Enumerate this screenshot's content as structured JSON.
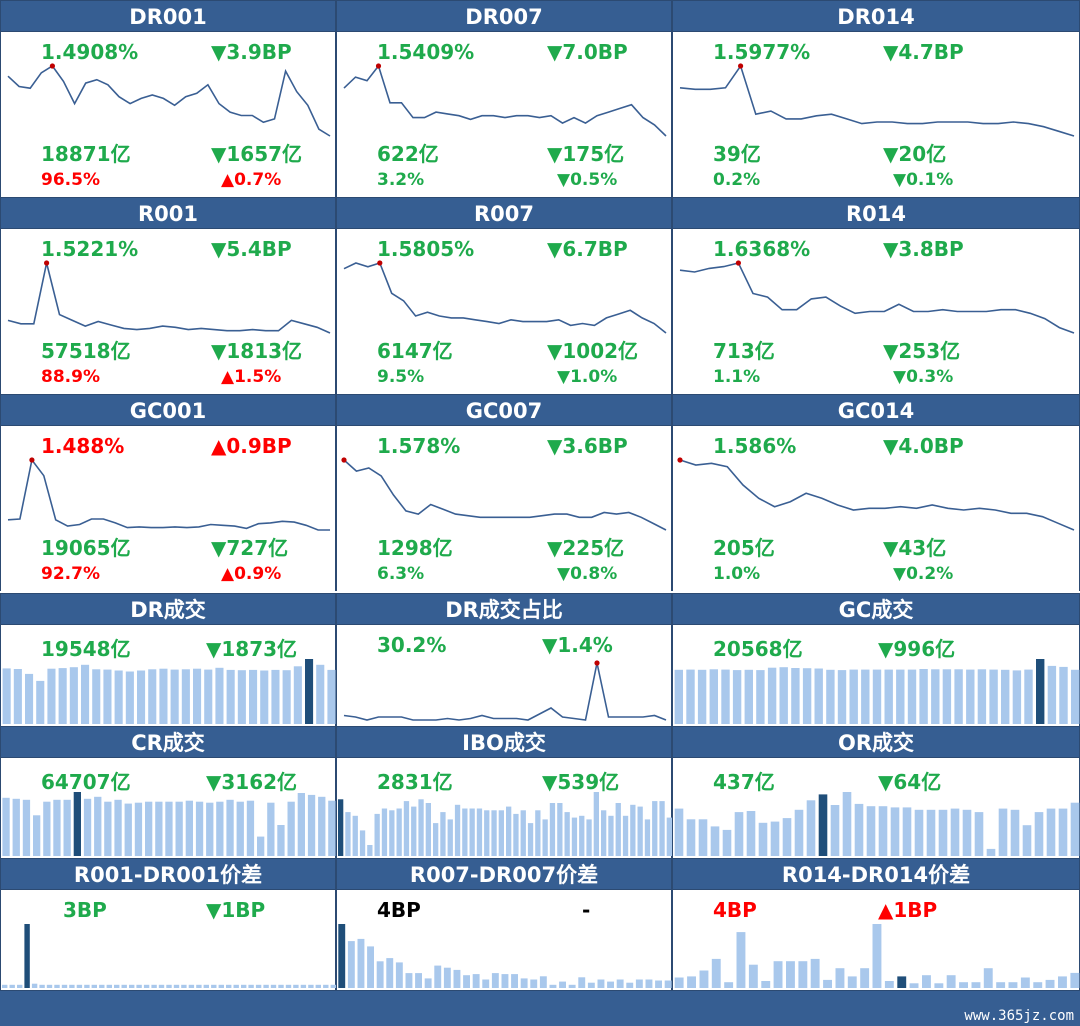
{
  "colors": {
    "green": "#1faa4c",
    "red": "#ff0000",
    "header": "#365e92",
    "bar": "#a9c8ec",
    "bar_hi": "#1f4e79",
    "line": "#3a5f93",
    "marker": "#c00000"
  },
  "rate_panels": [
    {
      "title": "DR001",
      "rate": "1.4908%",
      "rate_c": "g",
      "rate_chg": "▼3.9BP",
      "rate_chg_c": "g",
      "vol": "18871亿",
      "vol_c": "g",
      "vol_chg": "▼1657亿",
      "vol_chg_c": "g",
      "share": "96.5%",
      "share_c": "r",
      "share_chg": "▲0.7%",
      "share_chg_c": "r",
      "chart_data": {
        "type": "line",
        "title": "DR001",
        "marker_index": 4,
        "values": [
          1.49,
          1.43,
          1.42,
          1.51,
          1.55,
          1.46,
          1.33,
          1.45,
          1.47,
          1.44,
          1.37,
          1.33,
          1.36,
          1.38,
          1.36,
          1.32,
          1.37,
          1.39,
          1.44,
          1.33,
          1.28,
          1.26,
          1.26,
          1.22,
          1.24,
          1.52,
          1.4,
          1.32,
          1.18,
          1.14
        ]
      }
    },
    {
      "title": "DR007",
      "rate": "1.5409%",
      "rate_c": "g",
      "rate_chg": "▼7.0BP",
      "rate_chg_c": "g",
      "vol": "622亿",
      "vol_c": "g",
      "vol_chg": "▼175亿",
      "vol_chg_c": "g",
      "share": "3.2%",
      "share_c": "g",
      "share_chg": "▼0.5%",
      "share_chg_c": "g",
      "chart_data": {
        "type": "line",
        "title": "DR007",
        "marker_index": 3,
        "values": [
          1.76,
          1.82,
          1.8,
          1.88,
          1.68,
          1.68,
          1.6,
          1.6,
          1.63,
          1.62,
          1.61,
          1.59,
          1.61,
          1.61,
          1.6,
          1.61,
          1.61,
          1.6,
          1.61,
          1.57,
          1.6,
          1.57,
          1.61,
          1.63,
          1.65,
          1.67,
          1.6,
          1.56,
          1.5
        ]
      }
    },
    {
      "title": "DR014",
      "rate": "1.5977%",
      "rate_c": "g",
      "rate_chg": "▼4.7BP",
      "rate_chg_c": "g",
      "vol": "39亿",
      "vol_c": "g",
      "vol_chg": "▼20亿",
      "vol_chg_c": "g",
      "share": "0.2%",
      "share_c": "g",
      "share_chg": "▼0.1%",
      "share_chg_c": "g",
      "chart_data": {
        "type": "line",
        "title": "DR014",
        "marker_index": 4,
        "values": [
          1.9,
          1.89,
          1.89,
          1.9,
          2.04,
          1.73,
          1.75,
          1.7,
          1.7,
          1.72,
          1.73,
          1.7,
          1.67,
          1.68,
          1.68,
          1.67,
          1.67,
          1.68,
          1.68,
          1.68,
          1.67,
          1.67,
          1.68,
          1.67,
          1.65,
          1.62,
          1.59
        ]
      }
    },
    {
      "title": "R001",
      "rate": "1.5221%",
      "rate_c": "g",
      "rate_chg": "▼5.4BP",
      "rate_chg_c": "g",
      "vol": "57518亿",
      "vol_c": "g",
      "vol_chg": "▼1813亿",
      "vol_chg_c": "g",
      "share": "88.9%",
      "share_c": "r",
      "share_chg": "▲1.5%",
      "share_chg_c": "r",
      "chart_data": {
        "type": "line",
        "title": "R001",
        "marker_index": 3,
        "values": [
          1.6,
          1.57,
          1.57,
          2.1,
          1.65,
          1.6,
          1.55,
          1.59,
          1.56,
          1.53,
          1.52,
          1.53,
          1.55,
          1.54,
          1.52,
          1.53,
          1.52,
          1.51,
          1.51,
          1.52,
          1.51,
          1.51,
          1.6,
          1.57,
          1.54,
          1.49
        ]
      }
    },
    {
      "title": "R007",
      "rate": "1.5805%",
      "rate_c": "g",
      "rate_chg": "▼6.7BP",
      "rate_chg_c": "g",
      "vol": "6147亿",
      "vol_c": "g",
      "vol_chg": "▼1002亿",
      "vol_chg_c": "g",
      "share": "9.5%",
      "share_c": "g",
      "share_chg": "▼1.0%",
      "share_chg_c": "g",
      "chart_data": {
        "type": "line",
        "title": "R007",
        "marker_index": 3,
        "values": [
          1.9,
          1.93,
          1.91,
          1.93,
          1.77,
          1.73,
          1.65,
          1.67,
          1.65,
          1.64,
          1.64,
          1.63,
          1.62,
          1.61,
          1.63,
          1.62,
          1.62,
          1.62,
          1.63,
          1.6,
          1.61,
          1.6,
          1.64,
          1.66,
          1.68,
          1.64,
          1.61,
          1.56
        ]
      }
    },
    {
      "title": "R014",
      "rate": "1.6368%",
      "rate_c": "g",
      "rate_chg": "▼3.8BP",
      "rate_chg_c": "g",
      "vol": "713亿",
      "vol_c": "g",
      "vol_chg": "▼253亿",
      "vol_chg_c": "g",
      "share": "1.1%",
      "share_c": "g",
      "share_chg": "▼0.3%",
      "share_chg_c": "g",
      "chart_data": {
        "type": "line",
        "title": "R014",
        "marker_index": 4,
        "values": [
          1.92,
          1.91,
          1.93,
          1.94,
          1.96,
          1.79,
          1.77,
          1.7,
          1.7,
          1.76,
          1.77,
          1.72,
          1.68,
          1.69,
          1.69,
          1.73,
          1.69,
          1.69,
          1.7,
          1.69,
          1.69,
          1.69,
          1.7,
          1.7,
          1.68,
          1.65,
          1.6,
          1.57
        ]
      }
    },
    {
      "title": "GC001",
      "rate": "1.488%",
      "rate_c": "r",
      "rate_chg": "▲0.9BP",
      "rate_chg_c": "r",
      "vol": "19065亿",
      "vol_c": "g",
      "vol_chg": "▼727亿",
      "vol_chg_c": "g",
      "share": "92.7%",
      "share_c": "r",
      "share_chg": "▲0.9%",
      "share_chg_c": "r",
      "chart_data": {
        "type": "line",
        "title": "GC001",
        "marker_index": 2,
        "values": [
          1.52,
          1.53,
          2.28,
          2.08,
          1.52,
          1.44,
          1.46,
          1.53,
          1.53,
          1.48,
          1.42,
          1.43,
          1.42,
          1.42,
          1.43,
          1.42,
          1.43,
          1.46,
          1.45,
          1.44,
          1.41,
          1.47,
          1.48,
          1.5,
          1.49,
          1.45,
          1.39,
          1.39
        ]
      }
    },
    {
      "title": "GC007",
      "rate": "1.578%",
      "rate_c": "g",
      "rate_chg": "▼3.6BP",
      "rate_chg_c": "g",
      "vol": "1298亿",
      "vol_c": "g",
      "vol_chg": "▼225亿",
      "vol_chg_c": "g",
      "share": "6.3%",
      "share_c": "g",
      "share_chg": "▼0.8%",
      "share_chg_c": "g",
      "chart_data": {
        "type": "line",
        "title": "GC007",
        "marker_index": 0,
        "values": [
          2.0,
          1.93,
          1.95,
          1.9,
          1.78,
          1.68,
          1.66,
          1.72,
          1.69,
          1.66,
          1.65,
          1.64,
          1.64,
          1.64,
          1.64,
          1.64,
          1.65,
          1.66,
          1.66,
          1.64,
          1.64,
          1.67,
          1.66,
          1.67,
          1.64,
          1.6,
          1.56
        ]
      }
    },
    {
      "title": "GC014",
      "rate": "1.586%",
      "rate_c": "g",
      "rate_chg": "▼4.0BP",
      "rate_chg_c": "g",
      "vol": "205亿",
      "vol_c": "g",
      "vol_chg": "▼43亿",
      "vol_chg_c": "g",
      "share": "1.0%",
      "share_c": "g",
      "share_chg": "▼0.2%",
      "share_chg_c": "g",
      "chart_data": {
        "type": "line",
        "title": "GC014",
        "marker_index": 0,
        "values": [
          2.0,
          1.97,
          1.98,
          1.96,
          1.85,
          1.77,
          1.72,
          1.75,
          1.8,
          1.77,
          1.73,
          1.7,
          1.71,
          1.71,
          1.72,
          1.71,
          1.73,
          1.71,
          1.7,
          1.71,
          1.7,
          1.68,
          1.68,
          1.66,
          1.62,
          1.58
        ]
      }
    }
  ],
  "small_panels": [
    {
      "title": "DR成交",
      "v1": "19548亿",
      "v1_c": "g",
      "v2": "▼1873亿",
      "v2_c": "g",
      "chart_data": {
        "type": "bar",
        "title": "DR成交",
        "highlight_index": 27,
        "values": [
          18.3,
          18.1,
          16.5,
          14.2,
          18.2,
          18.4,
          18.7,
          19.5,
          18.0,
          17.9,
          17.6,
          17.3,
          17.6,
          18.0,
          18.2,
          17.9,
          18.0,
          18.2,
          17.9,
          18.5,
          17.8,
          17.7,
          17.8,
          17.6,
          17.8,
          17.7,
          19.0,
          21.4,
          19.5,
          17.8
        ]
      }
    },
    {
      "title": "DR成交占比",
      "v1": "30.2%",
      "v1_c": "g",
      "v2": "▼1.4%",
      "v2_c": "g",
      "chart_data": {
        "type": "line",
        "title": "DR成交占比",
        "marker_index": 22,
        "values": [
          32,
          31,
          29,
          31,
          31,
          31,
          29,
          29,
          29,
          30,
          29,
          30,
          32,
          30,
          30,
          30,
          29,
          33,
          37,
          31,
          30,
          29,
          67,
          31,
          31,
          31,
          31,
          32,
          29
        ]
      }
    },
    {
      "title": "GC成交",
      "v1": "20568亿",
      "v1_c": "g",
      "v2": "▼996亿",
      "v2_c": "g",
      "chart_data": {
        "type": "bar",
        "title": "GC成交",
        "highlight_index": 31,
        "values": [
          20.5,
          20.6,
          20.5,
          20.7,
          20.6,
          20.4,
          20.5,
          20.4,
          21.3,
          21.5,
          21.2,
          21.1,
          21.0,
          20.5,
          20.4,
          20.6,
          20.6,
          20.6,
          20.6,
          20.6,
          20.6,
          20.8,
          20.7,
          20.7,
          20.7,
          20.6,
          20.7,
          20.6,
          20.5,
          20.3,
          20.6,
          24.6,
          22.0,
          21.6,
          20.5
        ]
      }
    },
    {
      "title": "CR成交",
      "v1": "64707亿",
      "v1_c": "g",
      "v2": "▼3162亿",
      "v2_c": "g",
      "chart_data": {
        "type": "bar",
        "title": "CR成交",
        "highlight_index": 7,
        "values": [
          60,
          59,
          58,
          42,
          56,
          58,
          58,
          66,
          59,
          61,
          56,
          58,
          54,
          55,
          56,
          56,
          56,
          56,
          57,
          56,
          55,
          56,
          58,
          56,
          57,
          20,
          55,
          32,
          56,
          65,
          63,
          61,
          57
        ]
      }
    },
    {
      "title": "IBO成交",
      "v1": "2831亿",
      "v1_c": "g",
      "v2": "▼539亿",
      "v2_c": "g",
      "chart_data": {
        "type": "bar",
        "title": "IBO成交",
        "highlight_index": 0,
        "values": [
          31,
          24,
          22,
          14,
          6,
          23,
          26,
          25,
          26,
          30,
          27,
          31,
          29,
          18,
          24,
          20,
          28,
          26,
          26,
          26,
          25,
          25,
          25,
          27,
          23,
          25,
          18,
          25,
          20,
          29,
          29,
          24,
          21,
          22,
          20,
          35,
          25,
          22,
          29,
          22,
          28,
          27,
          20,
          30,
          30,
          21
        ]
      }
    },
    {
      "title": "OR成交",
      "v1": "437亿",
      "v1_c": "g",
      "v2": "▼64亿",
      "v2_c": "g",
      "chart_data": {
        "type": "bar",
        "title": "OR成交",
        "highlight_index": 12,
        "values": [
          40,
          31,
          31,
          25,
          22,
          37,
          38,
          28,
          29,
          32,
          39,
          47,
          52,
          43,
          54,
          44,
          42,
          42,
          41,
          41,
          39,
          39,
          39,
          40,
          39,
          37,
          6,
          40,
          39,
          26,
          37,
          40,
          40,
          45
        ]
      }
    },
    {
      "title": "R001-DR001价差",
      "v1": "3BP",
      "v1_c": "g",
      "v2": "▼1BP",
      "v2_c": "g",
      "chart_data": {
        "type": "bar",
        "title": "R001-DR001价差",
        "highlight_index": 3,
        "values": [
          3,
          3,
          3,
          60,
          4,
          3,
          3,
          3,
          3,
          3,
          3,
          3,
          3,
          3,
          3,
          3,
          3,
          3,
          3,
          3,
          3,
          3,
          3,
          3,
          3,
          3,
          3,
          3,
          3,
          3,
          3,
          3,
          3,
          3,
          3,
          3,
          3,
          3,
          3,
          3,
          3,
          3,
          3,
          3,
          3
        ]
      }
    },
    {
      "title": "R007-DR007价差",
      "v1": "4BP",
      "v1_c": "k",
      "v2": "-",
      "v2_c": "k",
      "chart_data": {
        "type": "bar",
        "title": "R007-DR007价差",
        "highlight_index": 0,
        "values": [
          60,
          44,
          46,
          39,
          25,
          28,
          24,
          14,
          14,
          9,
          21,
          19,
          17,
          12,
          13,
          8,
          14,
          13,
          13,
          9,
          8,
          11,
          3,
          6,
          3,
          10,
          5,
          8,
          6,
          8,
          5,
          8,
          8,
          7,
          7
        ]
      }
    },
    {
      "title": "R014-DR014价差",
      "v1": "4BP",
      "v1_c": "r",
      "v2": "▲1BP",
      "v2_c": "r",
      "chart_data": {
        "type": "bar",
        "title": "R014-DR014价差",
        "highlight_index": 18,
        "values": [
          9,
          10,
          15,
          25,
          5,
          48,
          20,
          6,
          23,
          23,
          23,
          25,
          7,
          17,
          10,
          17,
          55,
          6,
          10,
          4,
          11,
          4,
          11,
          5,
          5,
          17,
          5,
          5,
          9,
          5,
          7,
          10,
          13
        ]
      }
    }
  ],
  "footer": {
    "watermark": "www.365jz.com"
  }
}
